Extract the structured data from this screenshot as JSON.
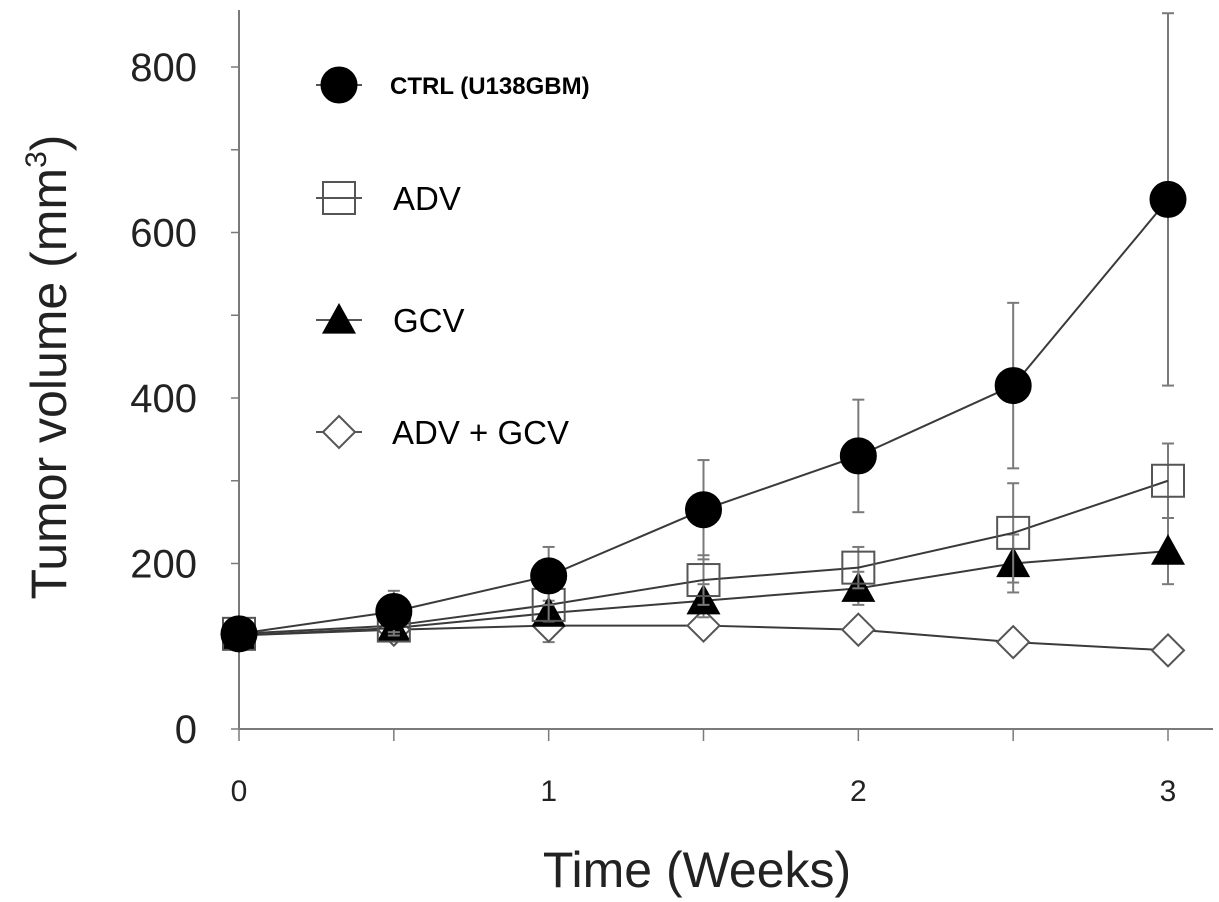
{
  "chart_data": {
    "type": "line",
    "xlabel": "Time (Weeks)",
    "ylabel": "Tumor volume (mm",
    "ylabel_sup": "3",
    "ylabel_close": ")",
    "xlim": [
      0,
      3.2
    ],
    "ylim": [
      0,
      880
    ],
    "xticks": [
      0,
      0.5,
      1,
      1.5,
      2,
      2.5,
      3
    ],
    "xtick_labels": [
      "0",
      "",
      "1",
      "",
      "2",
      "",
      "3"
    ],
    "yticks": [
      0,
      100,
      200,
      300,
      400,
      500,
      600,
      700,
      800
    ],
    "ytick_labels": [
      "0",
      "",
      "200",
      "",
      "400",
      "",
      "600",
      "",
      "800"
    ],
    "grid": false,
    "legend_position": "top-left",
    "x": [
      0,
      0.5,
      1,
      1.5,
      2,
      2.5,
      3
    ],
    "series": [
      {
        "name": "CTRL (U138GBM)",
        "marker": "filled-circle",
        "values": [
          115,
          142,
          185,
          265,
          330,
          415,
          640
        ],
        "errors": [
          8,
          25,
          35,
          60,
          68,
          100,
          225
        ]
      },
      {
        "name": "ADV",
        "marker": "open-square",
        "values": [
          115,
          125,
          150,
          180,
          195,
          237,
          300
        ],
        "errors": [
          8,
          12,
          20,
          30,
          25,
          60,
          45
        ]
      },
      {
        "name": "GCV",
        "marker": "filled-triangle",
        "values": [
          113,
          122,
          140,
          155,
          170,
          200,
          215
        ],
        "errors": [
          8,
          10,
          15,
          20,
          20,
          35,
          40
        ]
      },
      {
        "name": "ADV + GCV",
        "marker": "open-diamond",
        "values": [
          113,
          120,
          125,
          125,
          120,
          105,
          95
        ],
        "errors": [
          8,
          8,
          20,
          12,
          10,
          10,
          8
        ]
      }
    ]
  }
}
